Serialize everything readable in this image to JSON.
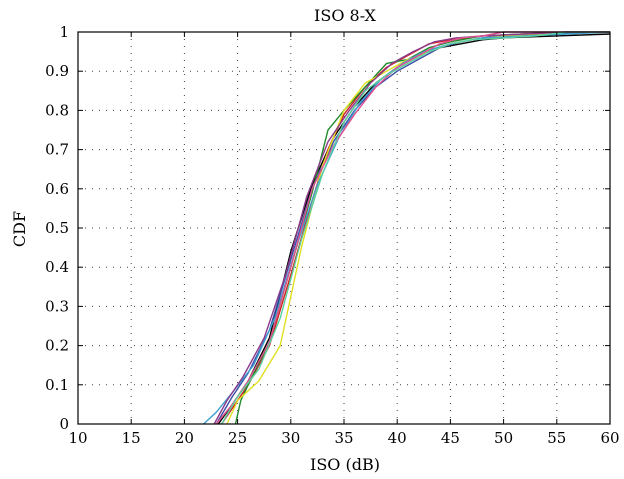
{
  "chart_data": {
    "type": "line",
    "title": "ISO 8-X",
    "xlabel": "ISO (dB)",
    "ylabel": "CDF",
    "xlim": [
      10,
      60
    ],
    "ylim": [
      0,
      1
    ],
    "xticks": [
      10,
      15,
      20,
      25,
      30,
      35,
      40,
      45,
      50,
      55,
      60
    ],
    "yticks": [
      0,
      0.1,
      0.2,
      0.3,
      0.4,
      0.5,
      0.6,
      0.7,
      0.8,
      0.9,
      1
    ],
    "ytick_labels": [
      "0",
      "0.1",
      "0.2",
      "0.3",
      "0.4",
      "0.5",
      "0.6",
      "0.7",
      "0.8",
      "0.9",
      "1"
    ],
    "grid": true,
    "series": [
      {
        "color": "#000000",
        "x": [
          23.2,
          24.5,
          26,
          28,
          30,
          32,
          34,
          36,
          38,
          40,
          42,
          44,
          46,
          48,
          50,
          55,
          60
        ],
        "y": [
          0,
          0.05,
          0.11,
          0.22,
          0.44,
          0.61,
          0.73,
          0.81,
          0.87,
          0.91,
          0.94,
          0.96,
          0.97,
          0.98,
          0.985,
          0.99,
          0.995
        ]
      },
      {
        "color": "#3b4fa8",
        "x": [
          23,
          24.5,
          26,
          28,
          30,
          32,
          34,
          36,
          38,
          40,
          42,
          44,
          46,
          48,
          50,
          55,
          60
        ],
        "y": [
          0,
          0.07,
          0.13,
          0.24,
          0.42,
          0.6,
          0.72,
          0.8,
          0.86,
          0.9,
          0.93,
          0.96,
          0.975,
          0.985,
          0.99,
          0.997,
          1
        ]
      },
      {
        "color": "#d02020",
        "x": [
          23.5,
          24.5,
          26,
          28,
          30,
          32,
          33.5,
          35,
          37,
          39,
          41,
          43,
          45,
          48,
          52,
          56,
          60
        ],
        "y": [
          0,
          0.04,
          0.1,
          0.2,
          0.38,
          0.57,
          0.7,
          0.79,
          0.86,
          0.91,
          0.94,
          0.97,
          0.98,
          0.99,
          0.995,
          1,
          1
        ]
      },
      {
        "color": "#1f8a2a",
        "x": [
          24.8,
          25.3,
          26,
          28,
          30,
          32,
          33.5,
          35,
          37,
          39,
          41,
          43,
          45,
          48,
          52,
          56,
          60
        ],
        "y": [
          0,
          0.06,
          0.1,
          0.21,
          0.4,
          0.59,
          0.75,
          0.8,
          0.86,
          0.92,
          0.93,
          0.96,
          0.975,
          0.99,
          0.995,
          1,
          1
        ]
      },
      {
        "color": "#e0e020",
        "x": [
          24,
          25,
          27,
          29,
          31,
          33,
          35,
          37,
          39,
          41,
          43,
          45,
          47,
          50,
          53,
          56,
          60
        ],
        "y": [
          0,
          0.06,
          0.11,
          0.2,
          0.45,
          0.66,
          0.8,
          0.87,
          0.9,
          0.93,
          0.95,
          0.97,
          0.98,
          0.99,
          0.995,
          1,
          1
        ]
      },
      {
        "color": "#40a0d0",
        "x": [
          21.8,
          23,
          24.5,
          26.5,
          28.5,
          30.5,
          32.5,
          34.5,
          36.5,
          38.5,
          40.5,
          42.5,
          45,
          48,
          52,
          56,
          60
        ],
        "y": [
          0,
          0.03,
          0.08,
          0.15,
          0.27,
          0.45,
          0.61,
          0.73,
          0.82,
          0.88,
          0.92,
          0.95,
          0.97,
          0.985,
          0.99,
          0.995,
          1
        ]
      },
      {
        "color": "#8b3a8b",
        "x": [
          22.8,
          24,
          25.5,
          27.5,
          29.5,
          31.5,
          33.5,
          35.5,
          37.5,
          39.5,
          41.5,
          43.5,
          45.5,
          48,
          52,
          56,
          60
        ],
        "y": [
          0,
          0.06,
          0.12,
          0.22,
          0.38,
          0.58,
          0.72,
          0.8,
          0.87,
          0.92,
          0.95,
          0.975,
          0.985,
          0.99,
          0.995,
          1,
          1
        ]
      },
      {
        "color": "#e05090",
        "x": [
          23,
          24.5,
          26,
          28,
          30,
          32,
          34,
          36,
          38,
          40,
          42,
          44,
          46,
          48,
          50,
          55,
          60
        ],
        "y": [
          0,
          0.05,
          0.11,
          0.21,
          0.4,
          0.6,
          0.71,
          0.79,
          0.86,
          0.91,
          0.94,
          0.97,
          0.985,
          0.99,
          1,
          1,
          1
        ]
      },
      {
        "color": "#5ad0a0",
        "x": [
          23.5,
          25,
          27,
          29,
          31,
          33,
          35,
          37,
          39,
          41,
          43,
          45,
          47,
          50,
          53,
          56,
          60
        ],
        "y": [
          0,
          0.07,
          0.14,
          0.27,
          0.47,
          0.64,
          0.77,
          0.85,
          0.89,
          0.92,
          0.95,
          0.97,
          0.98,
          0.985,
          0.99,
          1,
          1
        ]
      }
    ]
  }
}
